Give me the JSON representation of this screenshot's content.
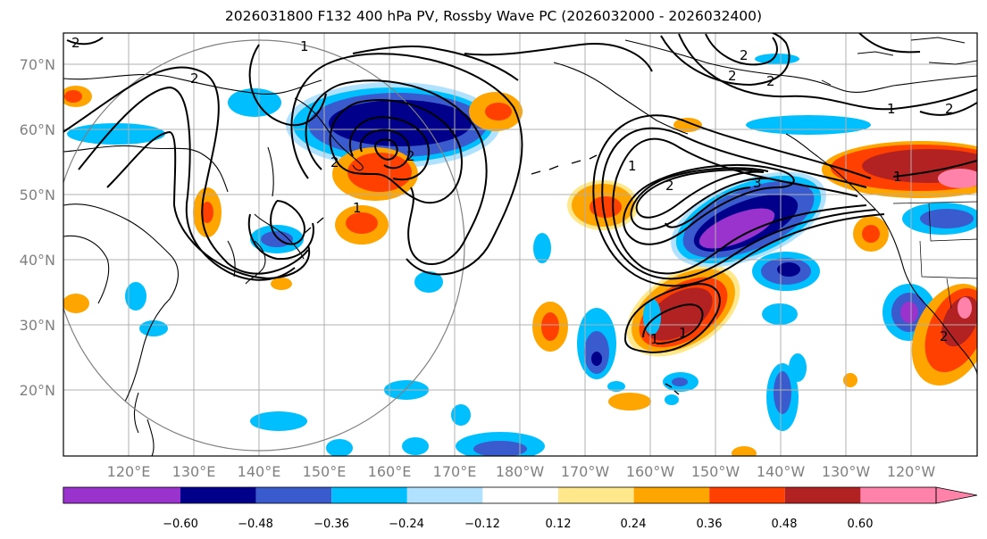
{
  "title": "2026031800 F132 400 hPa PV, Rossby Wave PC (2026032000 - 2026032400)",
  "lat_labels": [
    "70°N",
    "60°N",
    "50°N",
    "40°N",
    "30°N",
    "20°N"
  ],
  "lon_labels": [
    "120°E",
    "130°E",
    "140°E",
    "150°E",
    "160°E",
    "170°E",
    "180°W",
    "170°W",
    "160°W",
    "150°W",
    "140°W",
    "130°W",
    "120°W"
  ],
  "contour_labels": [
    "2",
    "1",
    "2",
    "2",
    "1",
    "2",
    "2",
    "2",
    "1",
    "2",
    "2",
    "3",
    "1",
    "2",
    "1",
    "1",
    "1",
    "2"
  ],
  "colorbar": {
    "ticks": [
      "−0.60",
      "−0.48",
      "−0.36",
      "−0.24",
      "−0.12",
      "0.12",
      "0.24",
      "0.36",
      "0.48",
      "0.60"
    ],
    "colors": [
      "#9a32cd",
      "#00008b",
      "#3a5bcd",
      "#00bfff",
      "#b0e2ff",
      "#ffffff",
      "#ffe88c",
      "#ffa500",
      "#ff4000",
      "#b22222",
      "#ff82ab"
    ],
    "extend": "both"
  },
  "colors": {
    "land_outline": "#000000",
    "grid": "#b0b0b0",
    "axis_label": "#808080",
    "range_ring": "#808080"
  }
}
